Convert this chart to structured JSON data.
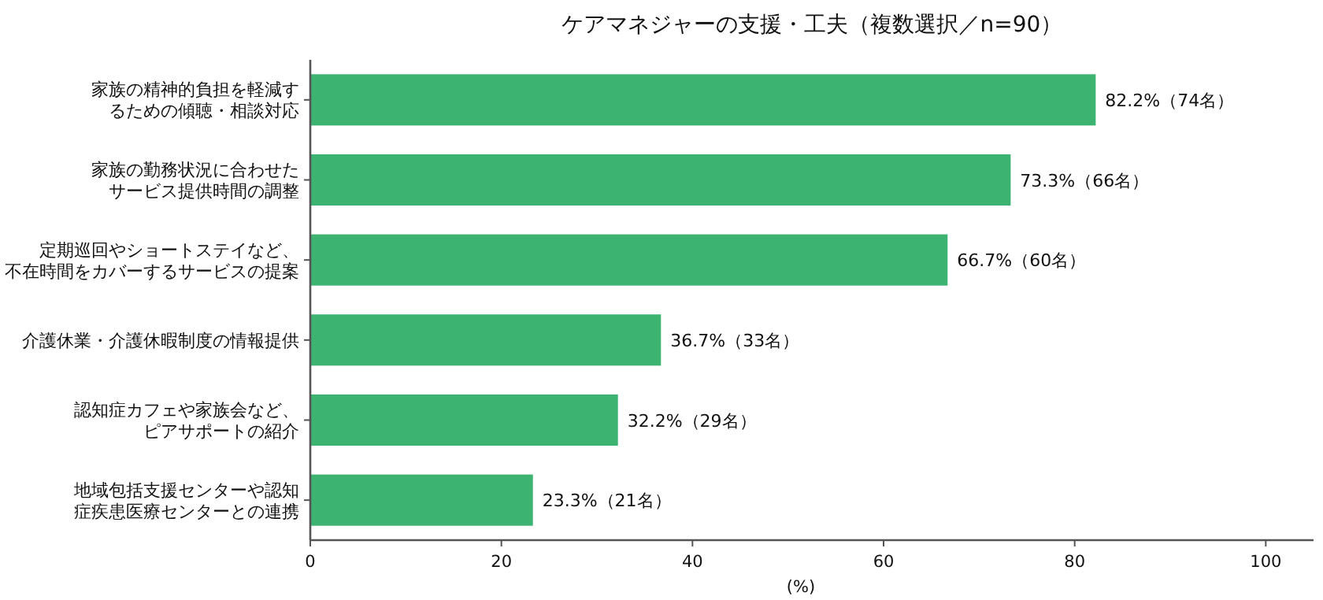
{
  "chart_data": {
    "type": "bar",
    "orientation": "horizontal",
    "title": "ケアマネジャーの支援・工夫（複数選択／n=90）",
    "xlabel": "(%)",
    "categories": [
      "家族の精神的負担を軽減するための傾聴・相談対応",
      "家族の勤務状況に合わせたサービス提供時間の調整",
      "定期巡回やショートステイなど、不在時間をカバーするサービスの提案",
      "介護休業・介護休暇制度の情報提供",
      "認知症カフェや家族会など、ピアサポートの紹介",
      "地域包括支援センターや認知症疾患医療センターとの連携"
    ],
    "values": [
      82.2,
      73.3,
      66.7,
      36.7,
      32.2,
      23.3
    ],
    "value_labels": [
      "82.2%（74名）",
      "73.3%（66名）",
      "66.7%（60名）",
      "36.7%（33名）",
      "32.2%（29名）",
      "23.3%（21名）"
    ],
    "color": "#3cb371",
    "xlim": [
      0,
      105
    ],
    "xticks": [
      0,
      20,
      40,
      60,
      80,
      100
    ],
    "grid": false
  }
}
